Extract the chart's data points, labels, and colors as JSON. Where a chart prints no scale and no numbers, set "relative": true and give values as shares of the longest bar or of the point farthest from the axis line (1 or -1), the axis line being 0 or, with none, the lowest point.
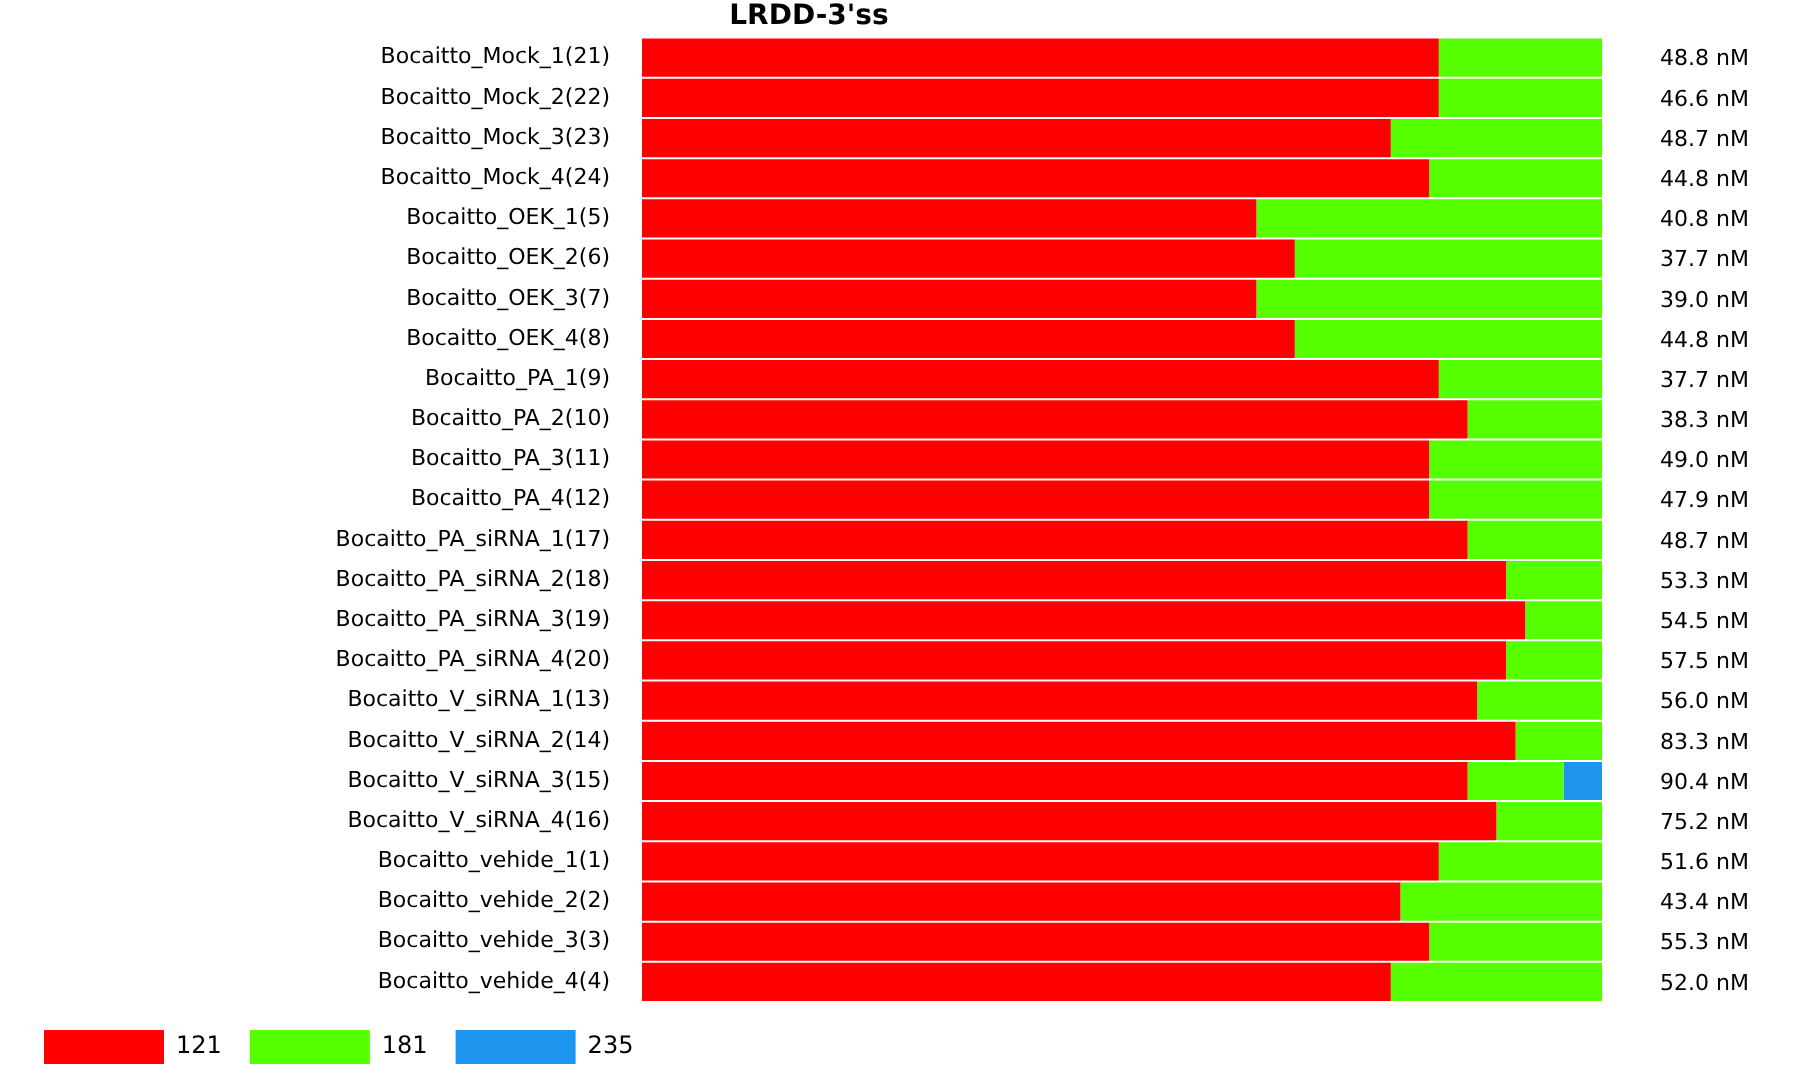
{
  "chart_data": {
    "type": "bar",
    "title": "LRDD-3'ss",
    "orientation": "horizontal",
    "stacked": true,
    "relative": true,
    "legend": "bottom left",
    "categories": [
      "Bocaitto_Mock_1(21)",
      "Bocaitto_Mock_2(22)",
      "Bocaitto_Mock_3(23)",
      "Bocaitto_Mock_4(24)",
      "Bocaitto_OEK_1(5)",
      "Bocaitto_OEK_2(6)",
      "Bocaitto_OEK_3(7)",
      "Bocaitto_OEK_4(8)",
      "Bocaitto_PA_1(9)",
      "Bocaitto_PA_2(10)",
      "Bocaitto_PA_3(11)",
      "Bocaitto_PA_4(12)",
      "Bocaitto_PA_siRNA_1(17)",
      "Bocaitto_PA_siRNA_2(18)",
      "Bocaitto_PA_siRNA_3(19)",
      "Bocaitto_PA_siRNA_4(20)",
      "Bocaitto_V_siRNA_1(13)",
      "Bocaitto_V_siRNA_2(14)",
      "Bocaitto_V_siRNA_3(15)",
      "Bocaitto_V_siRNA_4(16)",
      "Bocaitto_vehide_1(1)",
      "Bocaitto_vehide_2(2)",
      "Bocaitto_vehide_3(3)",
      "Bocaitto_vehide_4(4)"
    ],
    "series": [
      {
        "name": "121",
        "color": "#ff0000",
        "values": [
          0.83,
          0.83,
          0.78,
          0.82,
          0.64,
          0.68,
          0.64,
          0.68,
          0.83,
          0.86,
          0.82,
          0.82,
          0.86,
          0.9,
          0.92,
          0.9,
          0.87,
          0.91,
          0.86,
          0.89,
          0.83,
          0.79,
          0.82,
          0.78
        ]
      },
      {
        "name": "181",
        "color": "#55ff00",
        "values": [
          0.17,
          0.17,
          0.22,
          0.18,
          0.36,
          0.32,
          0.36,
          0.32,
          0.17,
          0.14,
          0.18,
          0.18,
          0.14,
          0.1,
          0.08,
          0.1,
          0.13,
          0.09,
          0.1,
          0.11,
          0.17,
          0.21,
          0.18,
          0.22
        ]
      },
      {
        "name": "235",
        "color": "#1e96f0",
        "values": [
          null,
          null,
          null,
          null,
          null,
          null,
          null,
          null,
          null,
          null,
          null,
          null,
          null,
          null,
          null,
          null,
          null,
          null,
          0.04,
          null,
          null,
          null,
          null,
          null
        ]
      }
    ],
    "annotations": [
      "48.8 nM",
      "46.6 nM",
      "48.7 nM",
      "44.8 nM",
      "40.8 nM",
      "37.7 nM",
      "39.0 nM",
      "44.8 nM",
      "37.7 nM",
      "38.3 nM",
      "49.0 nM",
      "47.9 nM",
      "48.7 nM",
      "53.3 nM",
      "54.5 nM",
      "57.5 nM",
      "56.0 nM",
      "83.3 nM",
      "90.4 nM",
      "75.2 nM",
      "51.6 nM",
      "43.4 nM",
      "55.3 nM",
      "52.0 nM"
    ]
  }
}
